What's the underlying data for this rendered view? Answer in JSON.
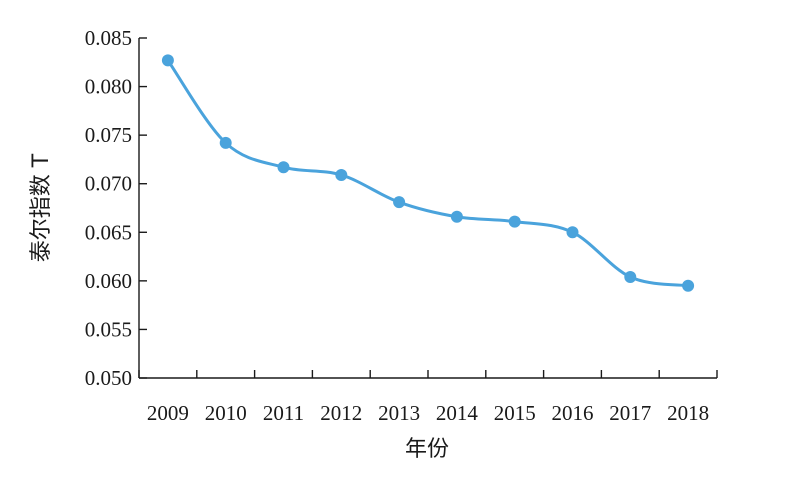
{
  "chart_data": {
    "type": "line",
    "categories": [
      "2009",
      "2010",
      "2011",
      "2012",
      "2013",
      "2014",
      "2015",
      "2016",
      "2017",
      "2018"
    ],
    "series": [
      {
        "values": [
          0.0827,
          0.0742,
          0.0717,
          0.0709,
          0.0681,
          0.0666,
          0.0661,
          0.065,
          0.0604,
          0.0595
        ],
        "color": "#4aa3dc"
      }
    ],
    "xlabel": "年份",
    "ylabel": "泰尔指数 T",
    "ylim": [
      0.05,
      0.085
    ],
    "yticks": [
      "0.050",
      "0.055",
      "0.060",
      "0.065",
      "0.070",
      "0.075",
      "0.080",
      "0.085"
    ],
    "grid": false,
    "smooth": true
  }
}
